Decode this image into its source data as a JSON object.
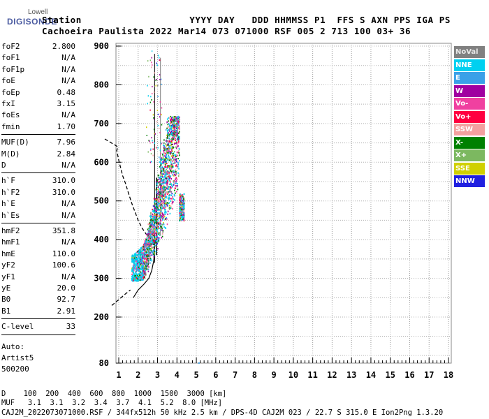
{
  "logo": {
    "top": "Lowell",
    "bottom": "DIGISONDE"
  },
  "header": {
    "line1": "Station                   YYYY DAY   DDD HHMMSS P1  FFS S AXN PPS IGA PS",
    "line2": "Cachoeira Paulista 2022 Mar14 073 071000 RSF 005 2 713 100 03+ 36"
  },
  "params": {
    "g1": [
      {
        "k": "foF2",
        "v": "2.800"
      },
      {
        "k": "foF1",
        "v": "N/A"
      },
      {
        "k": "foF1p",
        "v": "N/A"
      },
      {
        "k": "foE",
        "v": "N/A"
      },
      {
        "k": "foEp",
        "v": "0.48"
      },
      {
        "k": "fxI",
        "v": "3.15"
      },
      {
        "k": "foEs",
        "v": "N/A"
      },
      {
        "k": "fmin",
        "v": "1.70"
      }
    ],
    "g2": [
      {
        "k": "MUF(D)",
        "v": "7.96"
      },
      {
        "k": "M(D)",
        "v": "2.84"
      },
      {
        "k": "D",
        "v": "N/A"
      }
    ],
    "g3": [
      {
        "k": "h`F",
        "v": "310.0"
      },
      {
        "k": "h`F2",
        "v": "310.0"
      },
      {
        "k": "h`E",
        "v": "N/A"
      },
      {
        "k": "h`Es",
        "v": "N/A"
      }
    ],
    "g4": [
      {
        "k": "hmF2",
        "v": "351.8"
      },
      {
        "k": "hmF1",
        "v": "N/A"
      },
      {
        "k": "hmE",
        "v": "110.0"
      },
      {
        "k": "yF2",
        "v": "100.6"
      },
      {
        "k": "yF1",
        "v": "N/A"
      },
      {
        "k": "yE",
        "v": "20.0"
      },
      {
        "k": "B0",
        "v": "92.7"
      },
      {
        "k": "B1",
        "v": "2.91"
      }
    ],
    "g5": [
      {
        "k": "C-level",
        "v": "33"
      }
    ],
    "auto": [
      "Auto:",
      "Artist5",
      "500200"
    ]
  },
  "legend": [
    {
      "label": "NoVal",
      "color": "#808080"
    },
    {
      "label": "NNE",
      "color": "#00d0f0"
    },
    {
      "label": "E",
      "color": "#3aa0e8"
    },
    {
      "label": "W",
      "color": "#a000a0"
    },
    {
      "label": "Vo-",
      "color": "#f040a0"
    },
    {
      "label": "Vo+",
      "color": "#ff0040"
    },
    {
      "label": "SSW",
      "color": "#f4a0a0"
    },
    {
      "label": "X-",
      "color": "#008000"
    },
    {
      "label": "X+",
      "color": "#7cb860"
    },
    {
      "label": "SSE",
      "color": "#d0d000"
    },
    {
      "label": "NNW",
      "color": "#2020e0"
    }
  ],
  "chart_data": {
    "type": "scatter",
    "x_ticks": [
      "1",
      "2",
      "3",
      "4",
      "5",
      "6",
      "7",
      "8",
      "9",
      "10",
      "11",
      "12",
      "13",
      "14",
      "15",
      "16",
      "17",
      "18"
    ],
    "y_ticks": [
      "900",
      "800",
      "700",
      "600",
      "500",
      "400",
      "300",
      "200",
      "80"
    ],
    "xlim": [
      1,
      18
    ],
    "ylim": [
      80,
      900
    ],
    "grid": true,
    "legend_position": "right"
  },
  "footer": {
    "d_row": "D    100  200  400  600  800  1000  1500  3000 [km]",
    "muf_row": "MUF   3.1  3.1  3.2  3.4  3.7  4.1  5.2  8.0 [MHz]",
    "file_row": "CAJ2M_2022073071000.RSF / 344fx512h 50 kHz 2.5 km / DPS-4D CAJ2M 023 / 22.7 S 315.0 E Ion2Png 1.3.20"
  }
}
